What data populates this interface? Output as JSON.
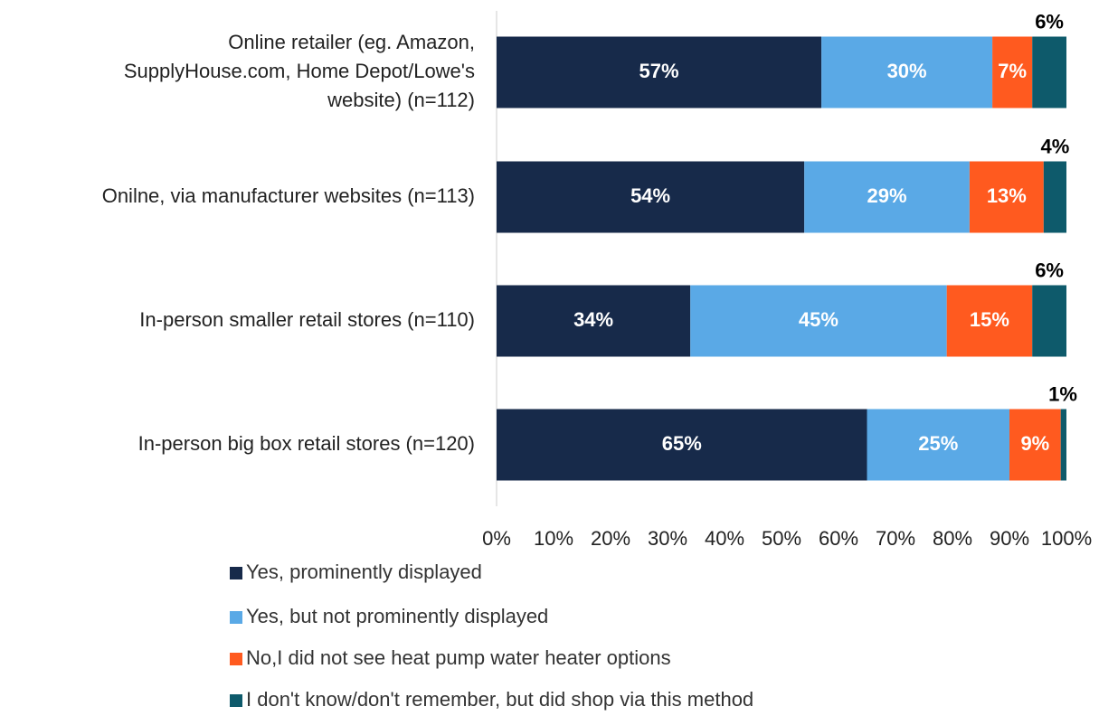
{
  "chart_data": {
    "type": "stacked-bar-horizontal",
    "categories": [
      "Online retailer (eg. Amazon,\nSupplyHouse.com, Home Depot/Lowe's\nwebsite) (n=112)",
      "Onilne, via manufacturer websites (n=113)",
      "In-person smaller retail stores (n=110)",
      "In-person big box retail stores (n=120)"
    ],
    "series": [
      {
        "name": "Yes, prominently displayed",
        "color": "#172a4a",
        "values": [
          57,
          54,
          34,
          65
        ],
        "value_labels": [
          "57%",
          "54%",
          "34%",
          "65%"
        ]
      },
      {
        "name": "Yes, but not prominently displayed",
        "color": "#5aa9e6",
        "values": [
          30,
          29,
          45,
          25
        ],
        "value_labels": [
          "30%",
          "29%",
          "45%",
          "25%"
        ]
      },
      {
        "name": "No,I did not see heat pump water heater options",
        "color": "#ff5a1f",
        "values": [
          7,
          13,
          15,
          9
        ],
        "value_labels": [
          "7%",
          "13%",
          "15%",
          "9%"
        ]
      },
      {
        "name": "I don't know/don't remember, but did shop via this method",
        "color": "#0e5a6b",
        "values": [
          6,
          4,
          6,
          1
        ],
        "value_labels": [
          "6%",
          "4%",
          "6%",
          "1%"
        ]
      }
    ],
    "xlim": [
      0,
      100
    ],
    "xticks": [
      {
        "value": 0,
        "label": "0%"
      },
      {
        "value": 10,
        "label": "10%"
      },
      {
        "value": 20,
        "label": "20%"
      },
      {
        "value": 30,
        "label": "30%"
      },
      {
        "value": 40,
        "label": "40%"
      },
      {
        "value": 50,
        "label": "50%"
      },
      {
        "value": 60,
        "label": "60%"
      },
      {
        "value": 70,
        "label": "70%"
      },
      {
        "value": 80,
        "label": "80%"
      },
      {
        "value": 90,
        "label": "90%"
      },
      {
        "value": 100,
        "label": "100%"
      }
    ],
    "grid": false,
    "legend": "bottom"
  }
}
